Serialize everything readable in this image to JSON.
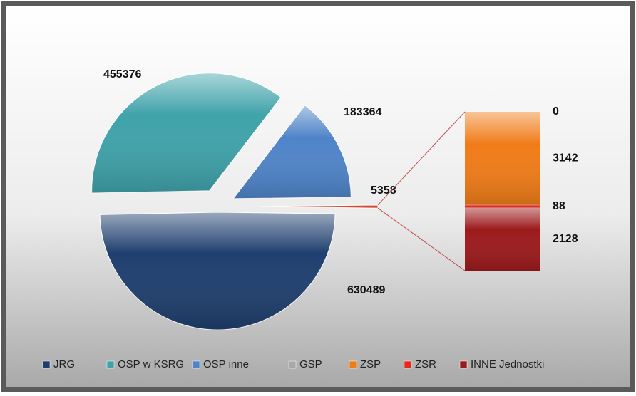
{
  "chart_data": {
    "type": "pie-of-bar",
    "categories": [
      "JRG",
      "OSP w KSRG",
      "OSP inne",
      "GSP",
      "ZSP",
      "ZSR",
      "INNE Jednostki"
    ],
    "values": [
      630489,
      455376,
      183364,
      0,
      3142,
      88,
      2128
    ],
    "colors": [
      "#1f3f6e",
      "#3fa3aa",
      "#4f84c9",
      "#a8a8a8",
      "#f07c18",
      "#e8261c",
      "#9c1a1c"
    ],
    "pie_count": 3,
    "other_value": 5358,
    "other_color": "#d8402a",
    "legend": "bottom"
  }
}
